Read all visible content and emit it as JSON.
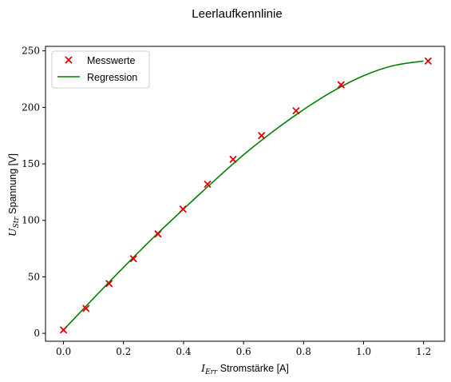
{
  "chart_data": {
    "type": "scatter",
    "title": "Leerlaufkennlinie",
    "xlabel": {
      "symbol": "I",
      "subscript": "Err",
      "text": "Stromstärke [A]"
    },
    "ylabel": {
      "symbol": "U",
      "subscript": "Str",
      "text": "Spannung [V]"
    },
    "xlim": [
      -0.06,
      1.27
    ],
    "ylim": [
      -7,
      254
    ],
    "xticks": [
      0.0,
      0.2,
      0.4,
      0.6,
      0.8,
      1.0,
      1.2
    ],
    "xtick_labels": [
      "0.0",
      "0.2",
      "0.4",
      "0.6",
      "0.8",
      "1.0",
      "1.2"
    ],
    "yticks": [
      0,
      50,
      100,
      150,
      200,
      250
    ],
    "ytick_labels": [
      "0",
      "50",
      "100",
      "150",
      "200",
      "250"
    ],
    "grid": false,
    "legend_position": "top-left",
    "series": [
      {
        "name": "Messwerte",
        "kind": "markers",
        "marker": "x",
        "color": "#e00000",
        "x": [
          0.0,
          0.075,
          0.152,
          0.233,
          0.315,
          0.398,
          0.48,
          0.565,
          0.66,
          0.775,
          0.925,
          1.215
        ],
        "y": [
          3,
          22,
          44,
          66,
          88,
          110,
          132,
          154,
          175,
          197,
          220,
          241
        ]
      },
      {
        "name": "Regression",
        "kind": "line",
        "color": "#008000",
        "x": [
          0.0,
          0.1,
          0.2,
          0.3,
          0.4,
          0.5,
          0.6,
          0.7,
          0.8,
          0.9,
          1.0,
          1.1,
          1.2
        ],
        "y": [
          3.0,
          31.0,
          58.4,
          84.9,
          110.0,
          134.5,
          158.0,
          179.0,
          198.0,
          214.6,
          228.0,
          237.0,
          241.0
        ]
      }
    ]
  }
}
